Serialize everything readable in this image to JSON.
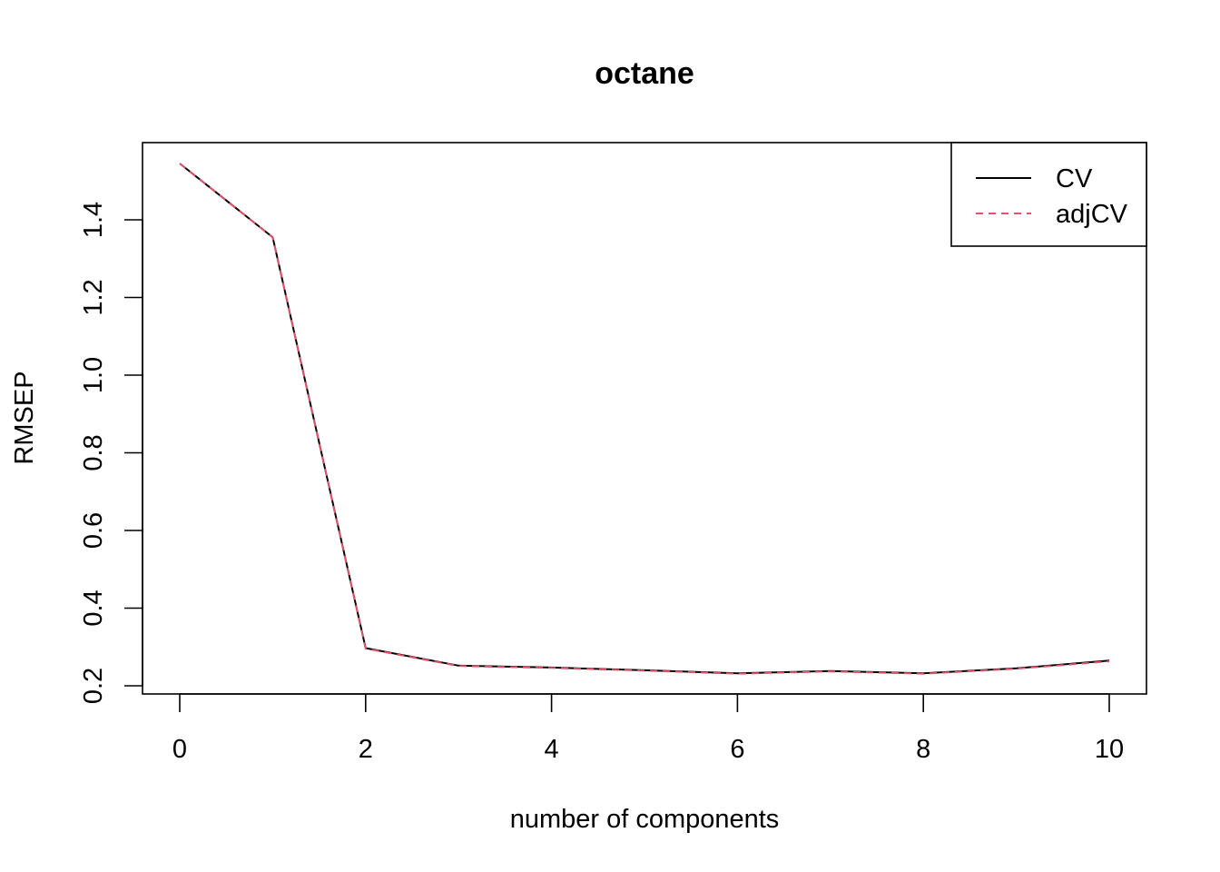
{
  "chart_data": {
    "type": "line",
    "title": "octane",
    "xlabel": "number of components",
    "ylabel": "RMSEP",
    "x": [
      0,
      1,
      2,
      3,
      4,
      5,
      6,
      7,
      8,
      9,
      10
    ],
    "series": [
      {
        "name": "CV",
        "color": "#000000",
        "dash": "solid",
        "values": [
          1.545,
          1.355,
          0.297,
          0.252,
          0.247,
          0.24,
          0.232,
          0.238,
          0.232,
          0.245,
          0.265
        ]
      },
      {
        "name": "adjCV",
        "color": "#DF536B",
        "dash": "dashed",
        "values": [
          1.545,
          1.355,
          0.296,
          0.251,
          0.246,
          0.239,
          0.231,
          0.237,
          0.231,
          0.244,
          0.263
        ]
      }
    ],
    "xlim": [
      0,
      10
    ],
    "ylim": [
      0.2,
      1.6
    ],
    "xticks": [
      0,
      2,
      4,
      6,
      8,
      10
    ],
    "yticks": [
      0.2,
      0.4,
      0.6,
      0.8,
      1.0,
      1.2,
      1.4
    ],
    "ytick_labels": [
      "0.2",
      "0.4",
      "0.6",
      "0.8",
      "1.0",
      "1.2",
      "1.4"
    ],
    "legend_position": "top-right",
    "grid": false
  }
}
